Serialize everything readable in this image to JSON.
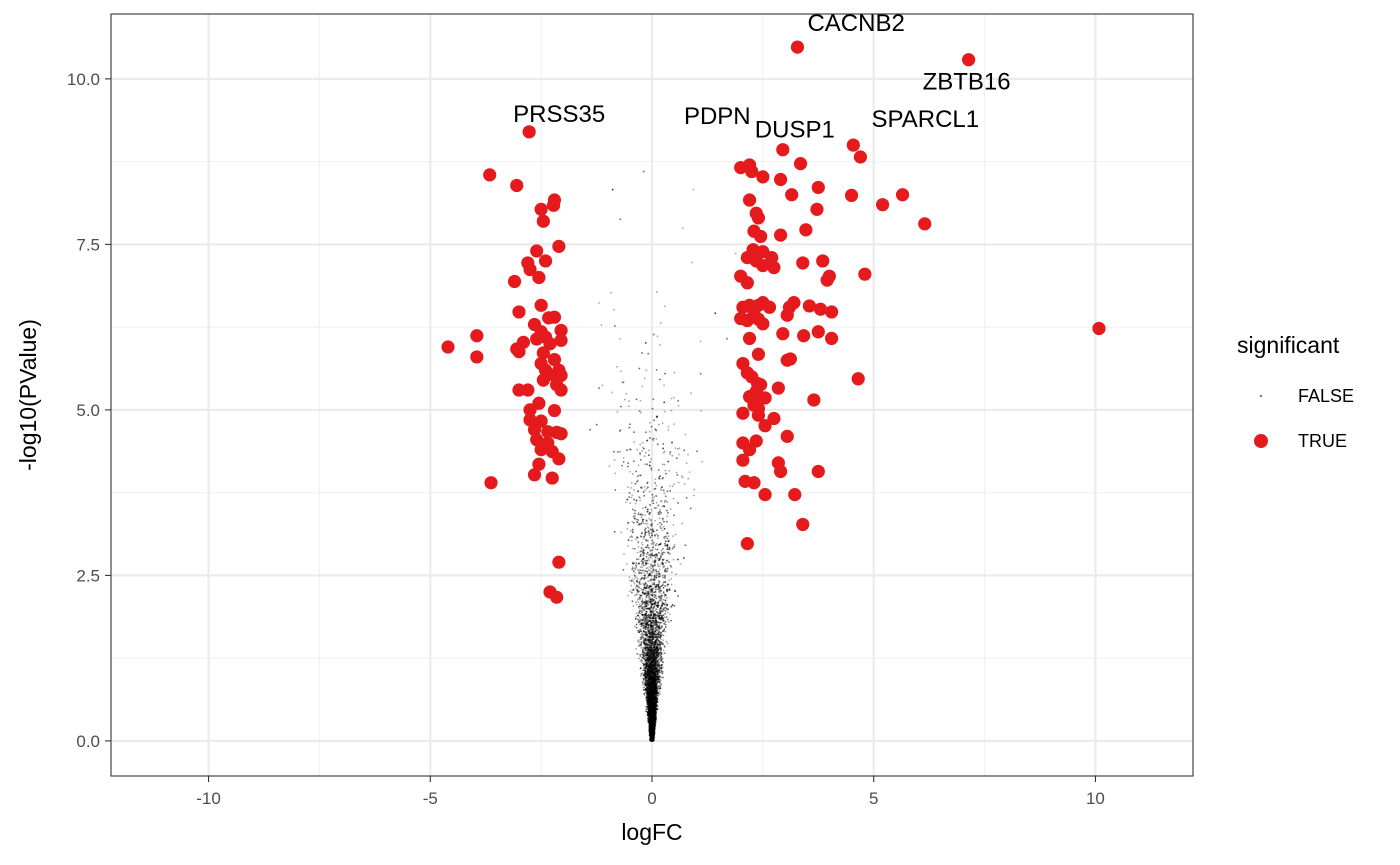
{
  "chart_data": {
    "type": "scatter",
    "title": "",
    "xlabel": "logFC",
    "ylabel": "-log10(PValue)",
    "xlim": [
      -12.2,
      12.2
    ],
    "ylim": [
      -0.53,
      10.98
    ],
    "x_ticks": [
      -10,
      -5,
      0,
      5,
      10
    ],
    "x_tick_labels": [
      "-10",
      "-5",
      "0",
      "5",
      "10"
    ],
    "y_ticks": [
      0,
      2.5,
      5,
      7.5,
      10
    ],
    "y_tick_labels": [
      "0.0",
      "2.5",
      "5.0",
      "7.5",
      "10.0"
    ],
    "grid": true,
    "legend": {
      "title": "significant",
      "placement": "right",
      "entries": [
        {
          "label": "FALSE",
          "color": "#000000"
        },
        {
          "label": "TRUE",
          "color": "#e41a1c"
        }
      ]
    },
    "series": [
      {
        "name": "FALSE",
        "color": "#000000",
        "note_points": "thousands of tiny points forming a V shape around logFC 0; envelope approx |logFC| <= 0.55*y+0.2, up to about y 8.8",
        "envelope": {
          "max_y": 8.8,
          "slope": 0.2,
          "base": 0.05
        }
      },
      {
        "name": "TRUE",
        "color": "#e41a1c",
        "points": [
          [
            3.28,
            10.48
          ],
          [
            7.14,
            10.29
          ],
          [
            -2.77,
            9.2
          ],
          [
            2.95,
            8.93
          ],
          [
            4.54,
            9.0
          ],
          [
            4.7,
            8.82
          ],
          [
            2.0,
            8.66
          ],
          [
            2.2,
            8.7
          ],
          [
            2.25,
            8.6
          ],
          [
            2.5,
            8.52
          ],
          [
            3.35,
            8.72
          ],
          [
            2.9,
            8.48
          ],
          [
            -3.66,
            8.55
          ],
          [
            -3.05,
            8.39
          ],
          [
            -2.2,
            8.17
          ],
          [
            -2.22,
            8.09
          ],
          [
            -2.5,
            8.03
          ],
          [
            -2.45,
            7.85
          ],
          [
            3.75,
            8.36
          ],
          [
            3.15,
            8.25
          ],
          [
            4.5,
            8.24
          ],
          [
            5.65,
            8.25
          ],
          [
            5.2,
            8.1
          ],
          [
            6.15,
            7.81
          ],
          [
            2.2,
            8.17
          ],
          [
            3.72,
            8.03
          ],
          [
            2.35,
            7.97
          ],
          [
            2.4,
            7.9
          ],
          [
            2.3,
            7.7
          ],
          [
            2.45,
            7.62
          ],
          [
            3.47,
            7.72
          ],
          [
            2.9,
            7.64
          ],
          [
            -2.1,
            7.47
          ],
          [
            -2.6,
            7.4
          ],
          [
            -2.8,
            7.22
          ],
          [
            -2.4,
            7.25
          ],
          [
            -2.75,
            7.12
          ],
          [
            -2.55,
            7.0
          ],
          [
            -3.1,
            6.94
          ],
          [
            2.28,
            7.42
          ],
          [
            2.5,
            7.39
          ],
          [
            2.15,
            7.3
          ],
          [
            2.35,
            7.25
          ],
          [
            2.5,
            7.18
          ],
          [
            2.7,
            7.3
          ],
          [
            2.75,
            7.15
          ],
          [
            3.4,
            7.22
          ],
          [
            3.85,
            7.25
          ],
          [
            2.0,
            7.02
          ],
          [
            2.15,
            6.92
          ],
          [
            4.0,
            7.02
          ],
          [
            3.95,
            6.96
          ],
          [
            4.8,
            7.05
          ],
          [
            -2.5,
            6.58
          ],
          [
            -3.0,
            6.48
          ],
          [
            -2.2,
            6.4
          ],
          [
            -2.33,
            6.39
          ],
          [
            -2.65,
            6.29
          ],
          [
            -2.5,
            6.18
          ],
          [
            -2.05,
            6.2
          ],
          [
            -2.4,
            6.1
          ],
          [
            -3.95,
            6.12
          ],
          [
            -2.9,
            6.02
          ],
          [
            -2.6,
            6.07
          ],
          [
            -2.3,
            6.0
          ],
          [
            -2.05,
            6.05
          ],
          [
            -4.6,
            5.95
          ],
          [
            -3.05,
            5.92
          ],
          [
            -3.0,
            5.88
          ],
          [
            -3.95,
            5.8
          ],
          [
            -2.45,
            5.86
          ],
          [
            -2.2,
            5.76
          ],
          [
            -2.5,
            5.7
          ],
          [
            -2.1,
            5.6
          ],
          [
            -2.4,
            5.6
          ],
          [
            -2.2,
            5.52
          ],
          [
            -2.05,
            5.52
          ],
          [
            -2.45,
            5.45
          ],
          [
            -2.15,
            5.38
          ],
          [
            -2.05,
            5.3
          ],
          [
            -3.0,
            5.3
          ],
          [
            -2.8,
            5.3
          ],
          [
            -2.55,
            5.1
          ],
          [
            -2.75,
            5.0
          ],
          [
            -2.2,
            4.99
          ],
          [
            -2.75,
            4.85
          ],
          [
            -2.5,
            4.83
          ],
          [
            -2.65,
            4.7
          ],
          [
            -2.35,
            4.67
          ],
          [
            -2.15,
            4.66
          ],
          [
            -2.05,
            4.64
          ],
          [
            -2.6,
            4.55
          ],
          [
            -2.35,
            4.5
          ],
          [
            -2.5,
            4.4
          ],
          [
            -2.25,
            4.37
          ],
          [
            -2.1,
            4.26
          ],
          [
            -2.55,
            4.18
          ],
          [
            -2.65,
            4.02
          ],
          [
            -2.25,
            3.97
          ],
          [
            -3.63,
            3.9
          ],
          [
            -2.1,
            2.7
          ],
          [
            -2.3,
            2.25
          ],
          [
            -2.15,
            2.17
          ],
          [
            2.05,
            6.55
          ],
          [
            2.2,
            6.58
          ],
          [
            2.4,
            6.58
          ],
          [
            2.5,
            6.62
          ],
          [
            2.65,
            6.55
          ],
          [
            3.1,
            6.55
          ],
          [
            3.2,
            6.62
          ],
          [
            3.55,
            6.57
          ],
          [
            3.8,
            6.52
          ],
          [
            4.05,
            6.48
          ],
          [
            2.0,
            6.38
          ],
          [
            2.15,
            6.35
          ],
          [
            2.3,
            6.45
          ],
          [
            2.4,
            6.37
          ],
          [
            2.5,
            6.3
          ],
          [
            3.05,
            6.43
          ],
          [
            2.95,
            6.15
          ],
          [
            3.42,
            6.12
          ],
          [
            3.75,
            6.18
          ],
          [
            4.05,
            6.08
          ],
          [
            2.2,
            6.08
          ],
          [
            2.4,
            5.84
          ],
          [
            3.05,
            5.75
          ],
          [
            3.12,
            5.77
          ],
          [
            2.05,
            5.7
          ],
          [
            2.15,
            5.56
          ],
          [
            2.25,
            5.5
          ],
          [
            2.38,
            5.4
          ],
          [
            2.45,
            5.38
          ],
          [
            2.35,
            5.28
          ],
          [
            2.85,
            5.33
          ],
          [
            4.65,
            5.47
          ],
          [
            2.2,
            5.2
          ],
          [
            2.42,
            5.2
          ],
          [
            2.55,
            5.18
          ],
          [
            2.3,
            5.07
          ],
          [
            2.4,
            5.02
          ],
          [
            3.65,
            5.15
          ],
          [
            2.05,
            4.95
          ],
          [
            2.4,
            4.92
          ],
          [
            2.75,
            4.87
          ],
          [
            2.55,
            4.76
          ],
          [
            2.05,
            4.5
          ],
          [
            3.05,
            4.6
          ],
          [
            2.35,
            4.53
          ],
          [
            2.2,
            4.4
          ],
          [
            2.05,
            4.24
          ],
          [
            2.85,
            4.2
          ],
          [
            2.9,
            4.07
          ],
          [
            3.75,
            4.07
          ],
          [
            2.1,
            3.92
          ],
          [
            2.3,
            3.9
          ],
          [
            2.55,
            3.72
          ],
          [
            3.22,
            3.72
          ],
          [
            3.4,
            3.27
          ],
          [
            2.15,
            2.98
          ],
          [
            10.08,
            6.23
          ]
        ]
      }
    ],
    "annotations": [
      {
        "text": "CACNB2",
        "x": 3.28,
        "y": 10.48
      },
      {
        "text": "ZBTB16",
        "x": 7.14,
        "y": 10.29
      },
      {
        "text": "PRSS35",
        "x": -2.77,
        "y": 9.2
      },
      {
        "text": "PDPN",
        "x": 0.3,
        "y": 9.2
      },
      {
        "text": "DUSP1",
        "x": 2.95,
        "y": 8.93
      },
      {
        "text": "SPARCL1",
        "x": 4.54,
        "y": 9.0
      }
    ]
  }
}
